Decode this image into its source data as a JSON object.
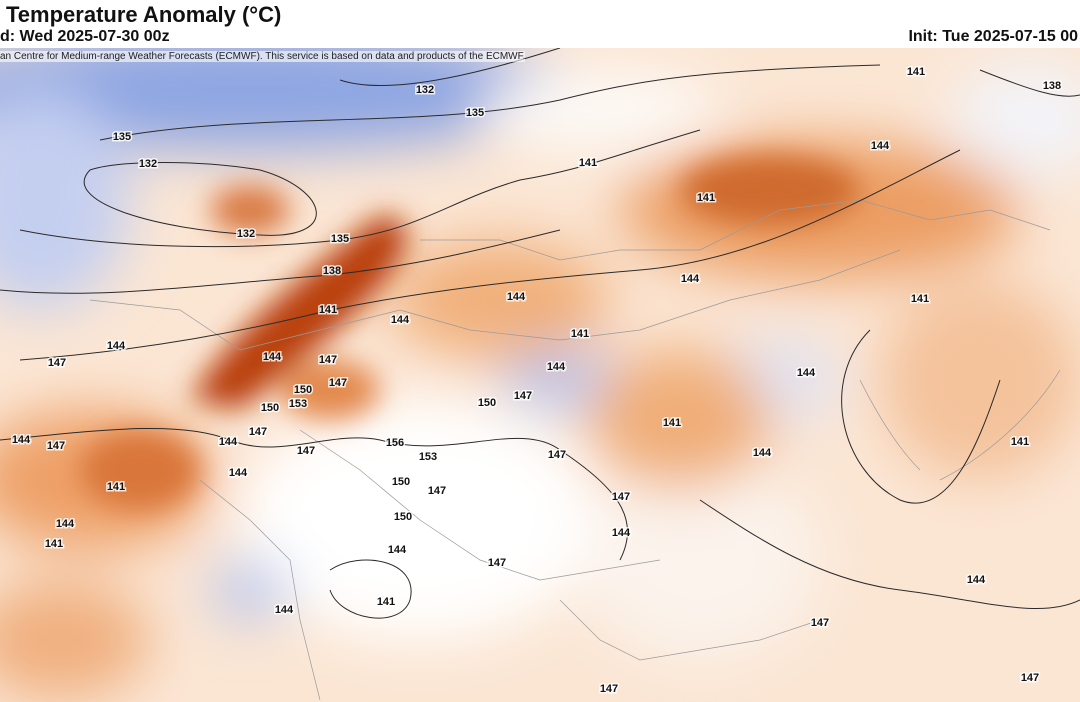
{
  "header": {
    "title": "Temperature Anomaly (°C)",
    "valid": "d: Wed 2025-07-30 00z",
    "init": "Init: Tue 2025-07-15 00",
    "attribution": "an Centre for Medium-range Weather Forecasts (ECMWF). This service is based on data and products of the ECMWF."
  },
  "map": {
    "contour_labels": [
      132,
      135,
      141,
      138,
      135,
      132,
      141,
      144,
      141,
      132,
      135,
      138,
      144,
      141,
      144,
      141,
      144,
      141,
      144,
      147,
      144,
      147,
      150,
      147,
      144,
      144,
      150,
      153,
      150,
      147,
      141,
      144,
      147,
      144,
      147,
      147,
      156,
      141,
      153,
      147,
      144,
      144,
      150,
      141,
      147,
      147,
      144,
      150,
      144,
      141,
      144,
      147,
      144,
      141,
      144,
      147,
      147,
      147
    ]
  }
}
